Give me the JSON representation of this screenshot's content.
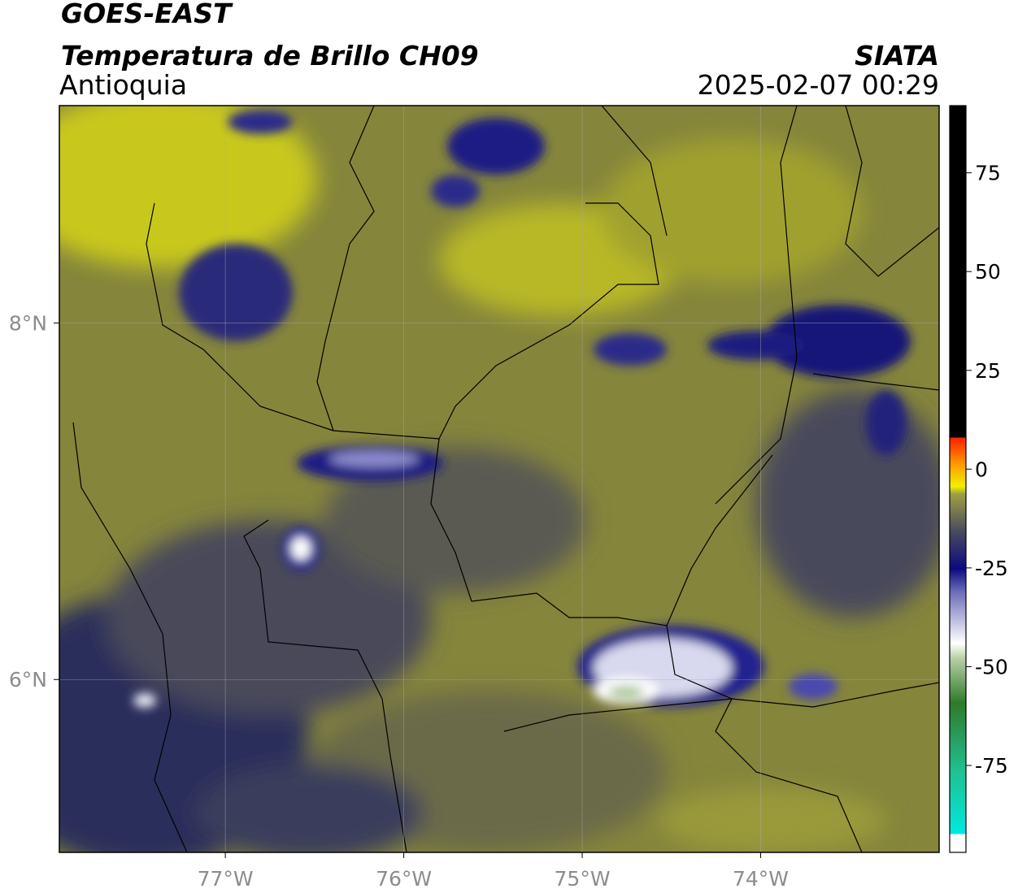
{
  "header": {
    "title": "GOES-EAST",
    "subtitle": "Temperatura de Brillo CH09",
    "region": "Antioquia",
    "source": "SIATA",
    "timestamp": "2025-02-07 00:29"
  },
  "map": {
    "xlim": [
      -77.93,
      -73.0
    ],
    "ylim": [
      5.03,
      9.22
    ],
    "xticks": [
      {
        "value": -77,
        "label": "77°W"
      },
      {
        "value": -76,
        "label": "76°W"
      },
      {
        "value": -75,
        "label": "75°W"
      },
      {
        "value": -74,
        "label": "74°W"
      }
    ],
    "yticks": [
      {
        "value": 6,
        "label": "6°N"
      },
      {
        "value": 8,
        "label": "8°N"
      }
    ],
    "grid": true
  },
  "colorbar": {
    "lim": [
      -97,
      92
    ],
    "ticks": [
      -75,
      -50,
      -25,
      0,
      25,
      50,
      75
    ]
  }
}
